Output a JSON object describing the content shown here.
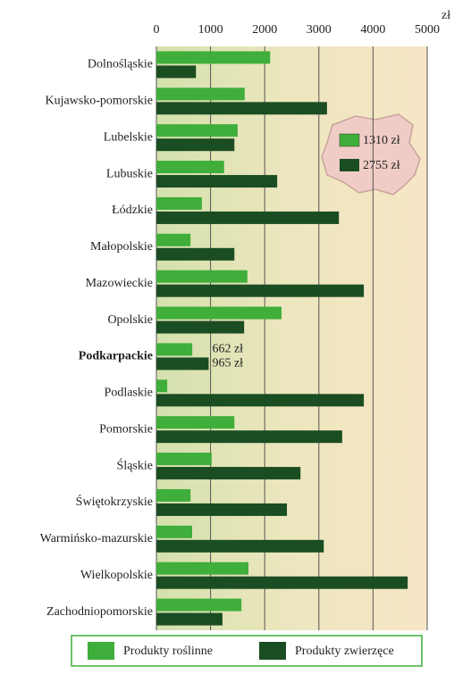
{
  "chart_data": {
    "type": "bar",
    "orientation": "horizontal",
    "axis_unit": "zł",
    "categories": [
      "Dolnośląskie",
      "Kujawsko-pomorskie",
      "Lubelskie",
      "Lubuskie",
      "Łódzkie",
      "Małopolskie",
      "Mazowieckie",
      "Opolskie",
      "Podkarpackie",
      "Podlaskie",
      "Pomorskie",
      "Śląskie",
      "Świętokrzyskie",
      "Warmińsko-mazurskie",
      "Wielkopolskie",
      "Zachodniopomorskie"
    ],
    "bold_category": "Podkarpackie",
    "series": [
      {
        "name": "Produkty roślinne",
        "color": "#3fae3a",
        "values": [
          2100,
          1630,
          1500,
          1250,
          840,
          630,
          1680,
          2310,
          662,
          200,
          1440,
          1020,
          630,
          660,
          1700,
          1570
        ],
        "value_labels": [
          null,
          null,
          null,
          null,
          null,
          null,
          null,
          null,
          "662 zł",
          null,
          null,
          null,
          null,
          null,
          null,
          null
        ]
      },
      {
        "name": "Produkty zwierzęce",
        "color": "#1b4d22",
        "values": [
          730,
          3150,
          1440,
          2230,
          3370,
          1440,
          3830,
          1620,
          965,
          3830,
          3430,
          2660,
          2410,
          3090,
          4640,
          1220
        ],
        "value_labels": [
          null,
          null,
          null,
          null,
          null,
          null,
          null,
          null,
          "965 zł",
          null,
          null,
          null,
          null,
          null,
          null,
          null
        ]
      }
    ],
    "xlim": [
      0,
      5000
    ],
    "xticks": [
      0,
      1000,
      2000,
      3000,
      4000,
      5000
    ],
    "grid": true,
    "inset_labels": [
      "1310 zł",
      "2755 zł"
    ],
    "legend": "bottom"
  }
}
